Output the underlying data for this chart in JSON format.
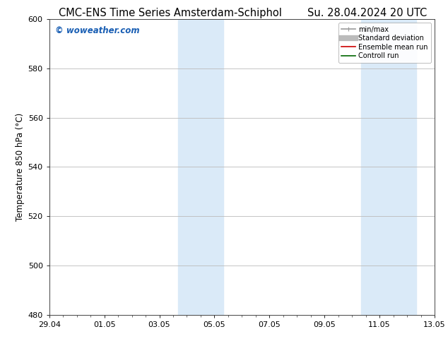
{
  "title_left": "CMC-ENS Time Series Amsterdam-Schiphol",
  "title_right": "Su. 28.04.2024 20 UTC",
  "ylabel": "Temperature 850 hPa (°C)",
  "ylim": [
    480,
    600
  ],
  "yticks": [
    480,
    500,
    520,
    540,
    560,
    580,
    600
  ],
  "xtick_labels": [
    "29.04",
    "01.05",
    "03.05",
    "05.05",
    "07.05",
    "09.05",
    "11.05",
    "13.05"
  ],
  "xtick_positions": [
    0,
    2,
    4,
    6,
    8,
    10,
    12,
    14
  ],
  "shaded_regions": [
    {
      "x_start": 4.67,
      "x_end": 6.33,
      "color": "#daeaf8"
    },
    {
      "x_start": 11.33,
      "x_end": 13.33,
      "color": "#daeaf8"
    }
  ],
  "watermark_text": "© woweather.com",
  "watermark_color": "#1a5fb4",
  "legend_entries": [
    {
      "label": "min/max",
      "color": "#999999",
      "linewidth": 1.2
    },
    {
      "label": "Standard deviation",
      "color": "#bbbbbb",
      "linewidth": 6
    },
    {
      "label": "Ensemble mean run",
      "color": "#cc0000",
      "linewidth": 1.2
    },
    {
      "label": "Controll run",
      "color": "#006600",
      "linewidth": 1.2
    }
  ],
  "background_color": "#ffffff",
  "plot_bg_color": "#ffffff",
  "grid_color": "#bbbbbb",
  "title_fontsize": 10.5,
  "ylabel_fontsize": 8.5,
  "tick_fontsize": 8,
  "watermark_fontsize": 8.5,
  "legend_fontsize": 7
}
